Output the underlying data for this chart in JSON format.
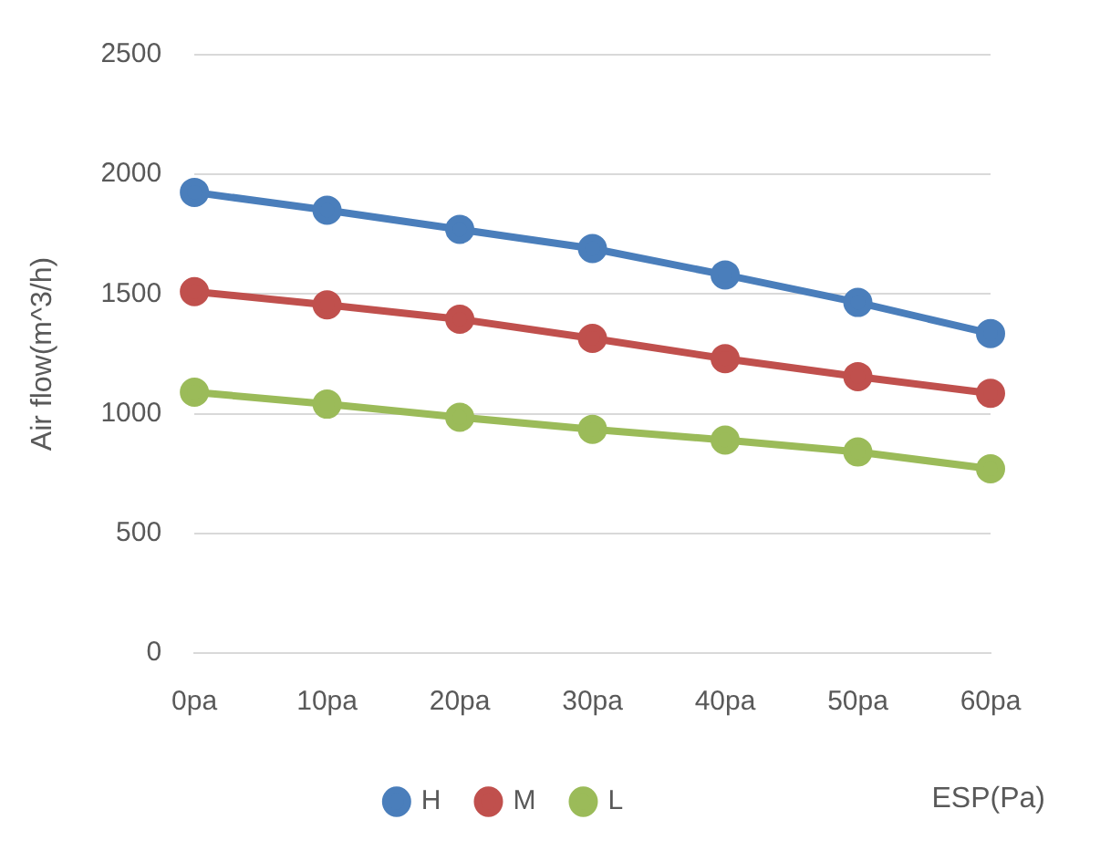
{
  "chart_data": {
    "type": "line",
    "xlabel": "ESP(Pa)",
    "ylabel": "Air flow(m^3/h)",
    "categories": [
      "0pa",
      "10pa",
      "20pa",
      "30pa",
      "40pa",
      "50pa",
      "60pa"
    ],
    "series": [
      {
        "name": "H",
        "color": "#4a7ebb",
        "values": [
          1925,
          1850,
          1770,
          1690,
          1580,
          1465,
          1335
        ]
      },
      {
        "name": "M",
        "color": "#c0504d",
        "values": [
          1510,
          1455,
          1395,
          1315,
          1230,
          1155,
          1085
        ]
      },
      {
        "name": "L",
        "color": "#9bbb59",
        "values": [
          1090,
          1040,
          985,
          935,
          890,
          840,
          770
        ]
      }
    ],
    "ylim": [
      0,
      2500
    ],
    "yticks": [
      0,
      500,
      1000,
      1500,
      2000,
      2500
    ],
    "grid": "y",
    "legend": "bottom",
    "marker": "circle",
    "line_style": "solid"
  }
}
